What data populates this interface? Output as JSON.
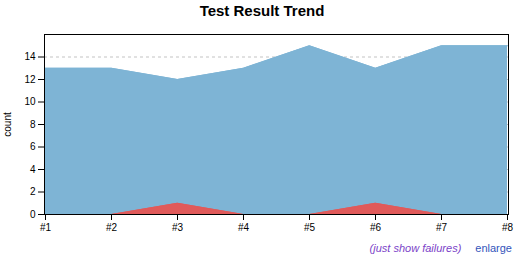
{
  "chart_data": {
    "type": "area",
    "title": "Test Result Trend",
    "ylabel": "count",
    "categories": [
      "#1",
      "#2",
      "#3",
      "#4",
      "#5",
      "#6",
      "#7",
      "#8"
    ],
    "series": [
      {
        "color": "#7eb4d5",
        "values": [
          13,
          13,
          12,
          13,
          15,
          13,
          15,
          15
        ]
      },
      {
        "color": "#e05a5a",
        "values": [
          0,
          0,
          1,
          0,
          0,
          1,
          0,
          0
        ]
      }
    ],
    "ylim": [
      0,
      16
    ],
    "yticks": [
      0,
      2,
      4,
      6,
      8,
      10,
      12,
      14
    ],
    "grid": true,
    "annotations": [
      {
        "text": "(just show failures)",
        "color": "#7B3FC8"
      },
      {
        "text": "enlarge",
        "color": "#3355bb"
      }
    ]
  }
}
